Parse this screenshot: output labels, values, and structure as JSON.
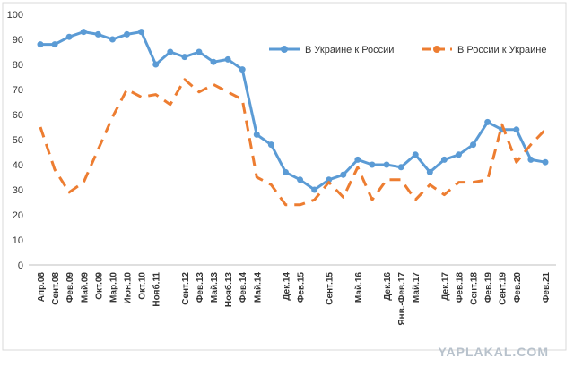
{
  "chart_data": {
    "type": "line",
    "categories": [
      "Апр.08",
      "Сент.08",
      "Фев.09",
      "Май.09",
      "Окт.09",
      "Мар.10",
      "Июн.10",
      "Окт.10",
      "Нояб.11",
      null,
      "Сент.12",
      "Фев.13",
      "Май.13",
      "Нояб.13",
      "Фев.14",
      "Май.14",
      null,
      "Дек.14",
      "Фев.15",
      null,
      "Сент.15",
      null,
      "Май.16",
      null,
      "Дек.16",
      "Янв.-Фев.17",
      "Май.17",
      null,
      "Дек.17",
      "Фев.18",
      "Сент.18",
      "Фев.19",
      "Сент.19",
      "Фев.20",
      null,
      "Фев.21"
    ],
    "series": [
      {
        "name": "В Украине  к России",
        "color": "#5b9bd5",
        "dashed": false,
        "values": [
          88,
          88,
          91,
          93,
          92,
          90,
          92,
          93,
          80,
          85,
          83,
          85,
          81,
          82,
          78,
          52,
          48,
          37,
          34,
          30,
          34,
          36,
          42,
          40,
          40,
          39,
          44,
          37,
          42,
          44,
          48,
          57,
          54,
          54,
          42,
          41
        ]
      },
      {
        "name": "В России  к Украине",
        "color": "#ed7d31",
        "dashed": true,
        "values": [
          55,
          38,
          29,
          33,
          46,
          59,
          70,
          67,
          68,
          64,
          74,
          69,
          72,
          69,
          66,
          35,
          32,
          24,
          24,
          26,
          33,
          27,
          39,
          26,
          34,
          34,
          26,
          32,
          28,
          33,
          33,
          34,
          56,
          41,
          48,
          54
        ]
      }
    ],
    "ylim": [
      0,
      100
    ],
    "yticks": [
      0,
      10,
      20,
      30,
      40,
      50,
      60,
      70,
      80,
      90,
      100
    ],
    "grid": false,
    "legend": "top-right",
    "watermark": "YAPLAKAL.COM"
  }
}
